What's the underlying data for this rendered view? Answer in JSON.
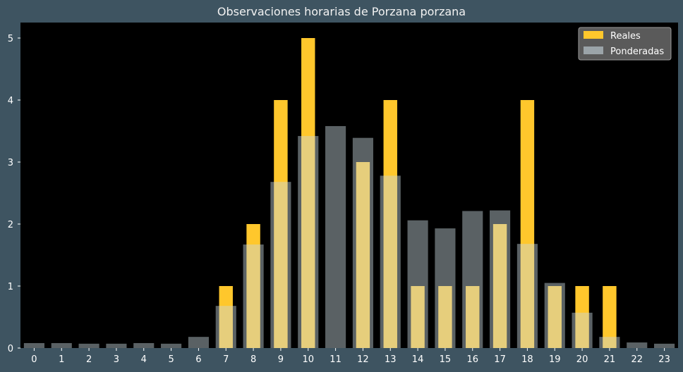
{
  "chart_data": {
    "type": "bar",
    "title": "Observaciones horarias de Porzana porzana",
    "xlabel": "",
    "ylabel": "",
    "categories": [
      "0",
      "1",
      "2",
      "3",
      "4",
      "5",
      "6",
      "7",
      "8",
      "9",
      "10",
      "11",
      "12",
      "13",
      "14",
      "15",
      "16",
      "17",
      "18",
      "19",
      "20",
      "21",
      "22",
      "23"
    ],
    "series": [
      {
        "name": "Reales",
        "color": "#ffc72c",
        "values": [
          0,
          0,
          0,
          0,
          0,
          0,
          0,
          1,
          2,
          4,
          5,
          0,
          3,
          4,
          1,
          1,
          1,
          2,
          4,
          1,
          1,
          1,
          0,
          0
        ]
      },
      {
        "name": "Ponderadas",
        "color": "#c7d6dd",
        "values": [
          0.08,
          0.08,
          0.07,
          0.07,
          0.08,
          0.07,
          0.18,
          0.68,
          1.67,
          2.68,
          3.42,
          3.58,
          3.39,
          2.78,
          2.06,
          1.93,
          2.21,
          2.22,
          1.68,
          1.05,
          0.57,
          0.18,
          0.09,
          0.07
        ]
      }
    ],
    "yticks": [
      0,
      1,
      2,
      3,
      4,
      5
    ],
    "ylim": [
      0,
      5.25
    ],
    "grid": false,
    "legend_position": "upper right",
    "plot_background": "#000000",
    "figure_background": "#3e5461"
  }
}
